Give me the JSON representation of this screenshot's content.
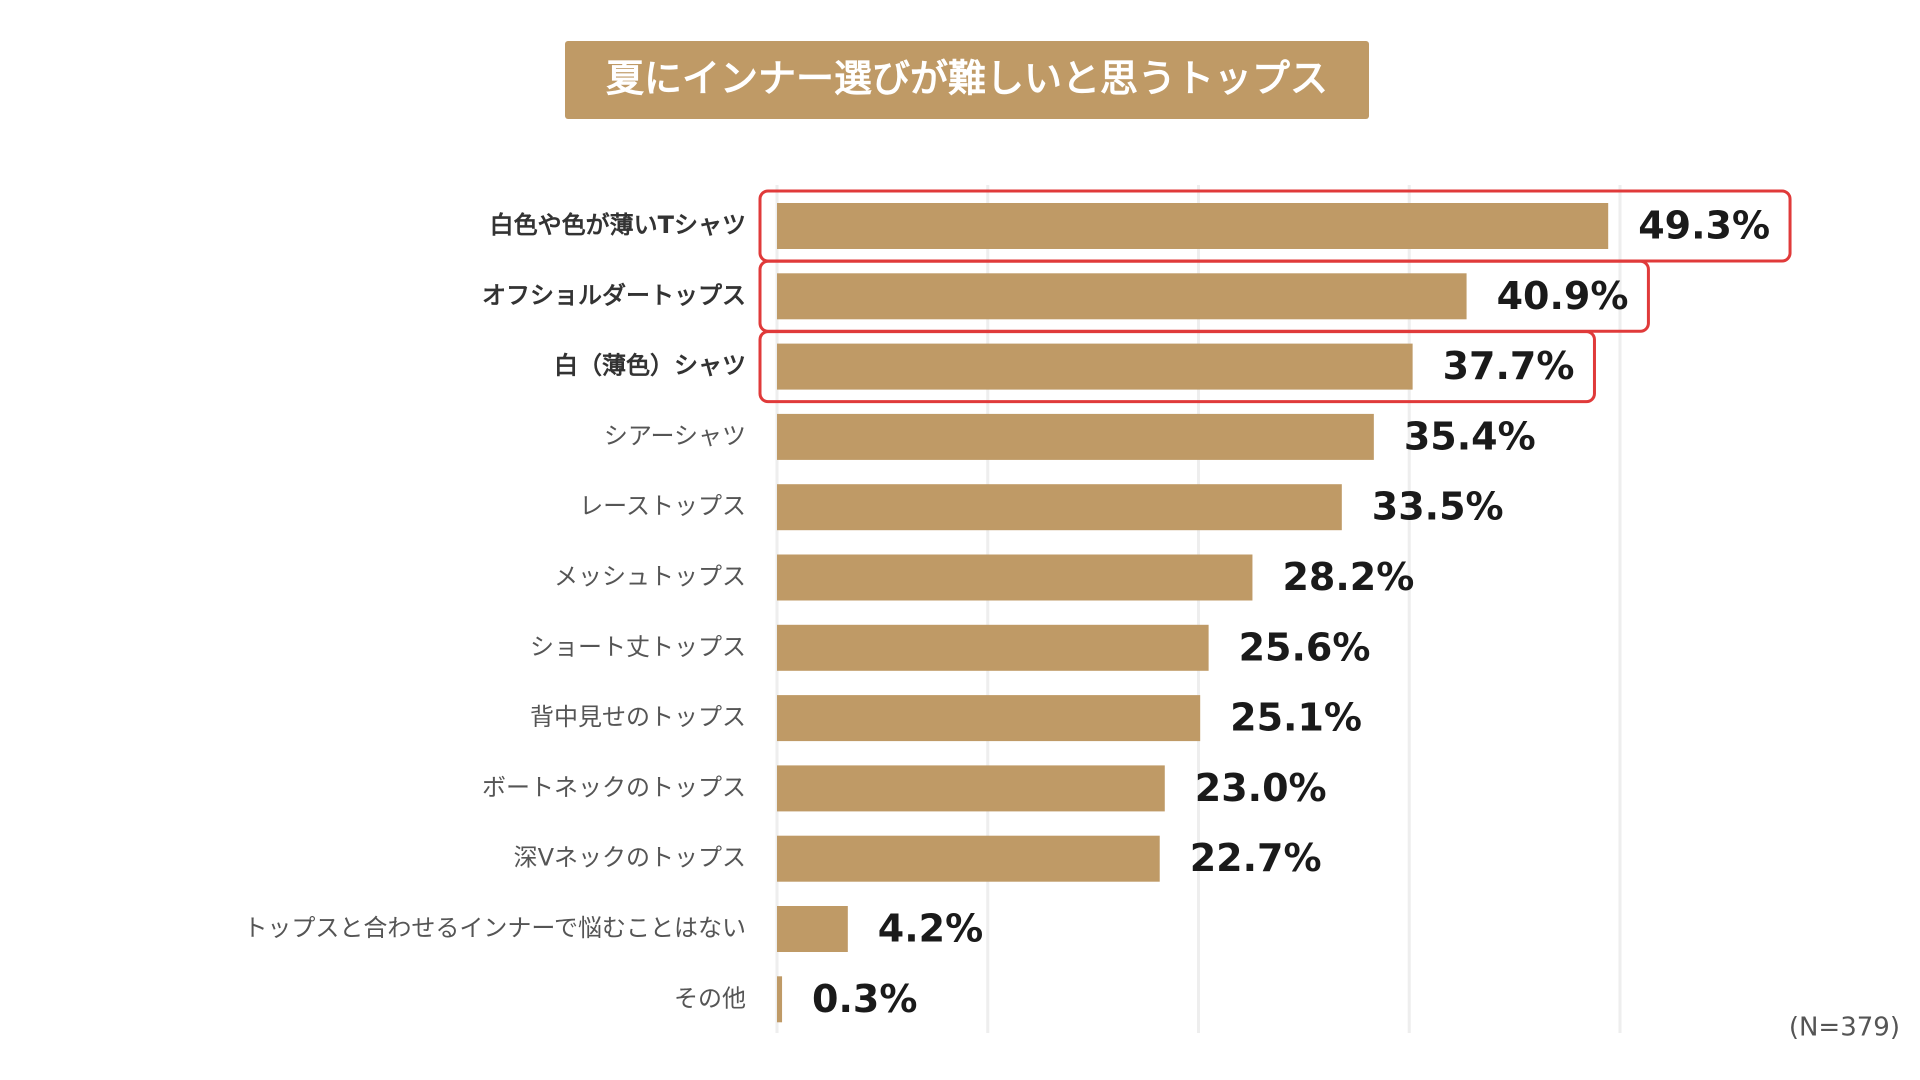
{
  "chart_data": {
    "type": "bar",
    "orientation": "horizontal",
    "title": "夏にインナー選びが難しいと思うトップス",
    "categories": [
      "白色や色が薄いTシャツ",
      "オフショルダートップス",
      "白（薄色）シャツ",
      "シアーシャツ",
      "レーストップス",
      "メッシュトップス",
      "ショート丈トップス",
      "背中見せのトップス",
      "ボートネックのトップス",
      "深Vネックのトップス",
      "トップスと合わせるインナーで悩むことはない",
      "その他"
    ],
    "values": [
      49.3,
      40.9,
      37.7,
      35.4,
      33.5,
      28.2,
      25.6,
      25.1,
      23.0,
      22.7,
      4.2,
      0.3
    ],
    "value_labels": [
      "49.3%",
      "40.9%",
      "37.7%",
      "35.4%",
      "33.5%",
      "28.2%",
      "25.6%",
      "25.1%",
      "23.0%",
      "22.7%",
      "4.2%",
      "0.3%"
    ],
    "color": "#bf9a66",
    "highlighted": [
      true,
      true,
      true,
      false,
      false,
      false,
      false,
      false,
      false,
      false,
      false,
      false
    ],
    "highlight_color": "#e03a3a",
    "xlim": [
      0,
      50
    ],
    "xticks": [
      0,
      12.5,
      25,
      37.5,
      50
    ],
    "grid": true,
    "note": "(N=379)"
  }
}
